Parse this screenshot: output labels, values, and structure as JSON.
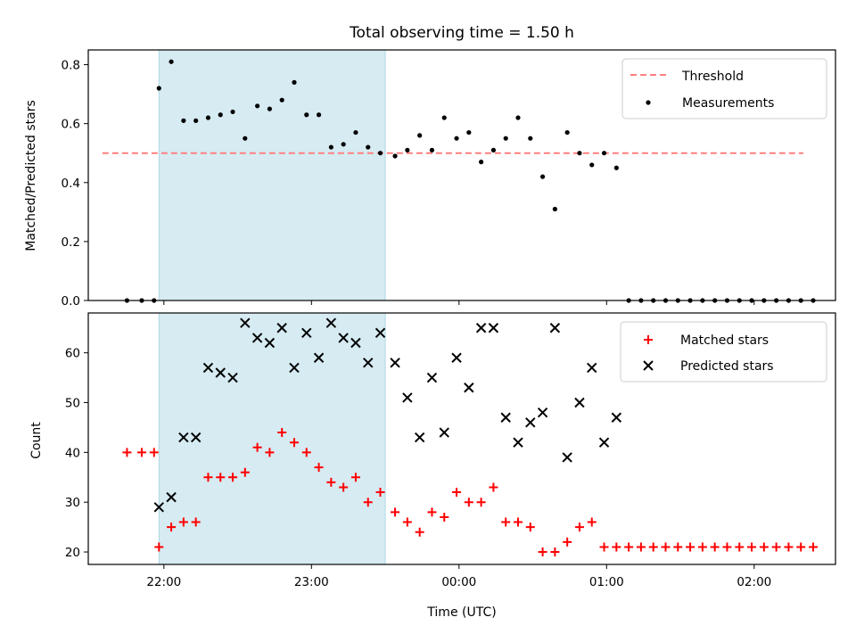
{
  "title": "Total observing time = 1.50 h",
  "colors": {
    "shade": "#add8e6",
    "threshold": "#ff7f7f",
    "measurements": "#000000",
    "matched": "#ff0000",
    "predicted": "#000000"
  },
  "chart_data": [
    {
      "type": "scatter",
      "ylabel": "Matched/Predicted stars",
      "xlabel": "",
      "ylim": [
        0,
        0.85
      ],
      "yticks": [
        "0.0",
        "0.2",
        "0.4",
        "0.6",
        "0.8"
      ],
      "grid": false,
      "legend_position": "upper right",
      "shaded_span": {
        "from": "21:58",
        "to": "23:30"
      },
      "threshold": {
        "name": "Threshold",
        "value": 0.5,
        "from": "21:35",
        "to": "02:20"
      },
      "series": [
        {
          "name": "Measurements",
          "points": [
            [
              "21:45",
              0.0
            ],
            [
              "21:51",
              0.0
            ],
            [
              "21:56",
              0.0
            ],
            [
              "21:58",
              0.72
            ],
            [
              "22:03",
              0.81
            ],
            [
              "22:08",
              0.61
            ],
            [
              "22:13",
              0.61
            ],
            [
              "22:18",
              0.62
            ],
            [
              "22:23",
              0.63
            ],
            [
              "22:28",
              0.64
            ],
            [
              "22:33",
              0.55
            ],
            [
              "22:38",
              0.66
            ],
            [
              "22:43",
              0.65
            ],
            [
              "22:48",
              0.68
            ],
            [
              "22:53",
              0.74
            ],
            [
              "22:58",
              0.63
            ],
            [
              "23:03",
              0.63
            ],
            [
              "23:08",
              0.52
            ],
            [
              "23:13",
              0.53
            ],
            [
              "23:18",
              0.57
            ],
            [
              "23:23",
              0.52
            ],
            [
              "23:28",
              0.5
            ],
            [
              "23:34",
              0.49
            ],
            [
              "23:39",
              0.51
            ],
            [
              "23:44",
              0.56
            ],
            [
              "23:49",
              0.51
            ],
            [
              "23:54",
              0.62
            ],
            [
              "23:59",
              0.55
            ],
            [
              "00:04",
              0.57
            ],
            [
              "00:09",
              0.47
            ],
            [
              "00:14",
              0.51
            ],
            [
              "00:19",
              0.55
            ],
            [
              "00:24",
              0.62
            ],
            [
              "00:29",
              0.55
            ],
            [
              "00:34",
              0.42
            ],
            [
              "00:39",
              0.31
            ],
            [
              "00:44",
              0.57
            ],
            [
              "00:49",
              0.5
            ],
            [
              "00:54",
              0.46
            ],
            [
              "00:59",
              0.5
            ],
            [
              "01:04",
              0.45
            ],
            [
              "01:09",
              0.0
            ],
            [
              "01:14",
              0.0
            ],
            [
              "01:19",
              0.0
            ],
            [
              "01:24",
              0.0
            ],
            [
              "01:29",
              0.0
            ],
            [
              "01:34",
              0.0
            ],
            [
              "01:39",
              0.0
            ],
            [
              "01:44",
              0.0
            ],
            [
              "01:49",
              0.0
            ],
            [
              "01:54",
              0.0
            ],
            [
              "01:59",
              0.0
            ],
            [
              "02:04",
              0.0
            ],
            [
              "02:09",
              0.0
            ],
            [
              "02:14",
              0.0
            ],
            [
              "02:19",
              0.0
            ],
            [
              "02:24",
              0.0
            ]
          ]
        }
      ]
    },
    {
      "type": "scatter",
      "ylabel": "Count",
      "xlabel": "Time (UTC)",
      "ylim": [
        17.5,
        68
      ],
      "yticks": [
        "20",
        "30",
        "40",
        "50",
        "60"
      ],
      "xticks": [
        "22:00",
        "23:00",
        "00:00",
        "01:00",
        "02:00"
      ],
      "grid": false,
      "legend_position": "upper right",
      "shaded_span": {
        "from": "21:58",
        "to": "23:30"
      },
      "series": [
        {
          "name": "Matched stars",
          "marker": "+",
          "points": [
            [
              "21:45",
              40
            ],
            [
              "21:51",
              40
            ],
            [
              "21:56",
              40
            ],
            [
              "21:58",
              21
            ],
            [
              "22:03",
              25
            ],
            [
              "22:08",
              26
            ],
            [
              "22:13",
              26
            ],
            [
              "22:18",
              35
            ],
            [
              "22:23",
              35
            ],
            [
              "22:28",
              35
            ],
            [
              "22:33",
              36
            ],
            [
              "22:38",
              41
            ],
            [
              "22:43",
              40
            ],
            [
              "22:48",
              44
            ],
            [
              "22:53",
              42
            ],
            [
              "22:58",
              40
            ],
            [
              "23:03",
              37
            ],
            [
              "23:08",
              34
            ],
            [
              "23:13",
              33
            ],
            [
              "23:18",
              35
            ],
            [
              "23:23",
              30
            ],
            [
              "23:28",
              32
            ],
            [
              "23:34",
              28
            ],
            [
              "23:39",
              26
            ],
            [
              "23:44",
              24
            ],
            [
              "23:49",
              28
            ],
            [
              "23:54",
              27
            ],
            [
              "23:59",
              32
            ],
            [
              "00:04",
              30
            ],
            [
              "00:09",
              30
            ],
            [
              "00:14",
              33
            ],
            [
              "00:19",
              26
            ],
            [
              "00:24",
              26
            ],
            [
              "00:29",
              25
            ],
            [
              "00:34",
              20
            ],
            [
              "00:39",
              20
            ],
            [
              "00:44",
              22
            ],
            [
              "00:49",
              25
            ],
            [
              "00:54",
              26
            ],
            [
              "00:59",
              21
            ],
            [
              "01:04",
              21
            ],
            [
              "01:09",
              21
            ],
            [
              "01:14",
              21
            ],
            [
              "01:19",
              21
            ],
            [
              "01:24",
              21
            ],
            [
              "01:29",
              21
            ],
            [
              "01:34",
              21
            ],
            [
              "01:39",
              21
            ],
            [
              "01:44",
              21
            ],
            [
              "01:49",
              21
            ],
            [
              "01:54",
              21
            ],
            [
              "01:59",
              21
            ],
            [
              "02:04",
              21
            ],
            [
              "02:09",
              21
            ],
            [
              "02:14",
              21
            ],
            [
              "02:19",
              21
            ],
            [
              "02:24",
              21
            ]
          ]
        },
        {
          "name": "Predicted stars",
          "marker": "x",
          "points": [
            [
              "21:58",
              29
            ],
            [
              "22:03",
              31
            ],
            [
              "22:08",
              43
            ],
            [
              "22:13",
              43
            ],
            [
              "22:18",
              57
            ],
            [
              "22:23",
              56
            ],
            [
              "22:28",
              55
            ],
            [
              "22:33",
              66
            ],
            [
              "22:38",
              63
            ],
            [
              "22:43",
              62
            ],
            [
              "22:48",
              65
            ],
            [
              "22:53",
              57
            ],
            [
              "22:58",
              64
            ],
            [
              "23:03",
              59
            ],
            [
              "23:08",
              66
            ],
            [
              "23:13",
              63
            ],
            [
              "23:18",
              62
            ],
            [
              "23:23",
              58
            ],
            [
              "23:28",
              64
            ],
            [
              "23:34",
              58
            ],
            [
              "23:39",
              51
            ],
            [
              "23:44",
              43
            ],
            [
              "23:49",
              55
            ],
            [
              "23:54",
              44
            ],
            [
              "23:59",
              59
            ],
            [
              "00:04",
              53
            ],
            [
              "00:09",
              65
            ],
            [
              "00:14",
              65
            ],
            [
              "00:19",
              47
            ],
            [
              "00:24",
              42
            ],
            [
              "00:29",
              46
            ],
            [
              "00:34",
              48
            ],
            [
              "00:39",
              65
            ],
            [
              "00:44",
              39
            ],
            [
              "00:49",
              50
            ],
            [
              "00:54",
              57
            ],
            [
              "00:59",
              42
            ],
            [
              "01:04",
              47
            ]
          ]
        }
      ]
    }
  ]
}
